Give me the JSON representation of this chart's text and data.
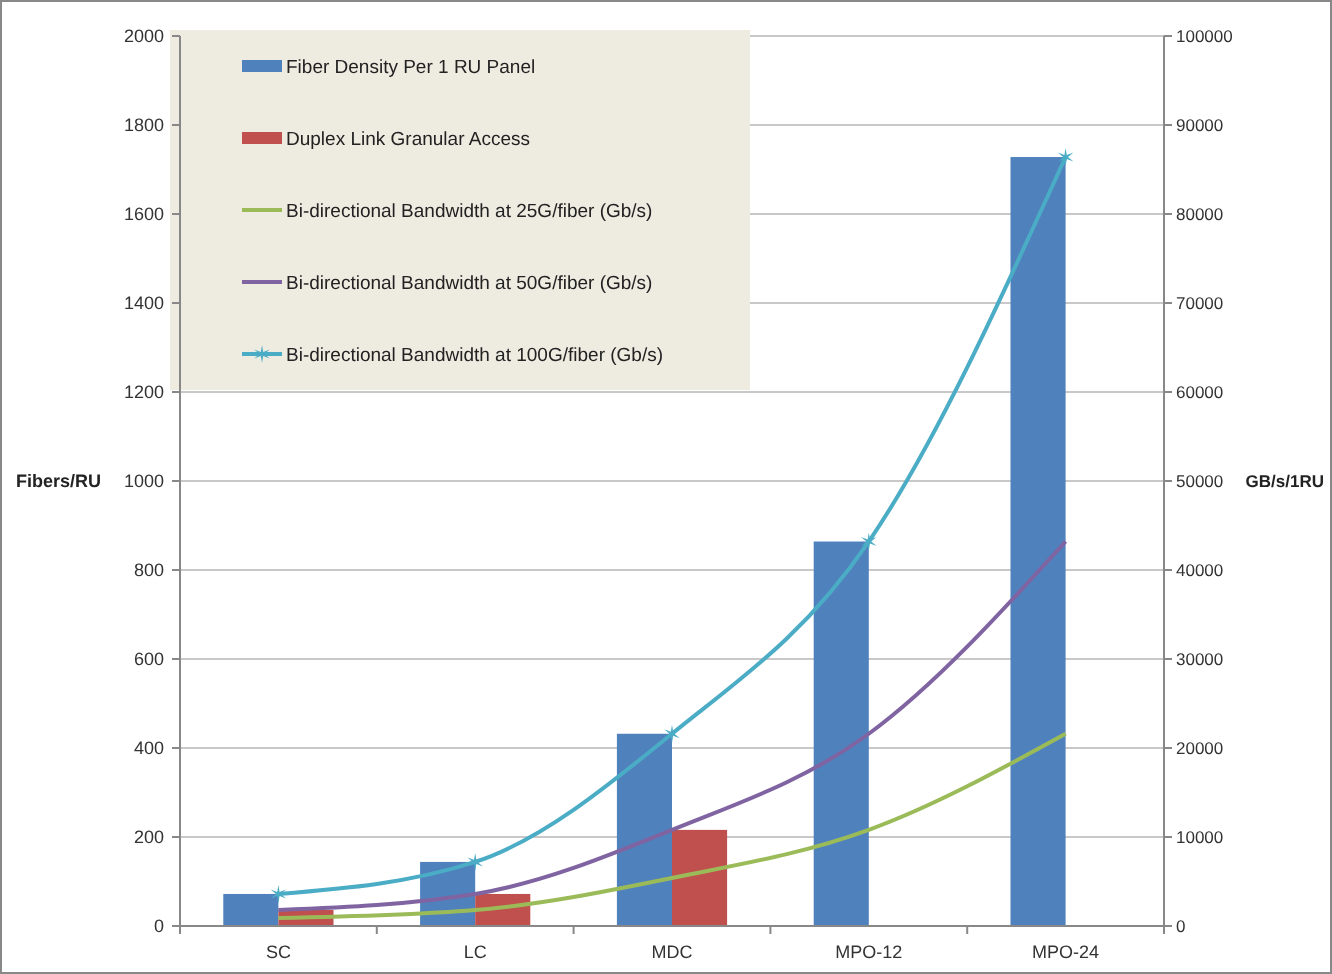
{
  "chart_data": {
    "type": "bar",
    "categories": [
      "SC",
      "LC",
      "MDC",
      "MPO-12",
      "MPO-24"
    ],
    "ylabel": "Fibers/RU",
    "y2label": "GB/s/1RU",
    "ylim": [
      0,
      2000
    ],
    "yticks": [
      0,
      200,
      400,
      600,
      800,
      1000,
      1200,
      1400,
      1600,
      1800,
      2000
    ],
    "y2lim": [
      0,
      100000
    ],
    "y2ticks": [
      0,
      10000,
      20000,
      30000,
      40000,
      50000,
      60000,
      70000,
      80000,
      90000,
      100000
    ],
    "grid": "y",
    "legend": "top left",
    "series": [
      {
        "name": "Fiber Density Per 1 RU Panel",
        "color": "#4f81bd",
        "values": [
          72,
          144,
          432,
          864,
          1728
        ]
      },
      {
        "name": "Duplex Link Granular Access",
        "color": "#c0504d",
        "values": [
          36,
          72,
          216,
          null,
          null
        ]
      },
      {
        "name": "Bi-directional Bandwidth at 25G/fiber (Gb/s)",
        "type": "line",
        "axis": "y2",
        "color": "#9bbb59",
        "marker": "none",
        "values": [
          900,
          1800,
          5400,
          10800,
          21600
        ]
      },
      {
        "name": "Bi-directional Bandwidth at 50G/fiber (Gb/s)",
        "type": "line",
        "axis": "y2",
        "color": "#8064a2",
        "marker": "none",
        "values": [
          1800,
          3600,
          10800,
          21600,
          43200
        ]
      },
      {
        "name": "Bi-directional Bandwidth at 100G/fiber (Gb/s)",
        "type": "line",
        "axis": "y2",
        "color": "#4bacc6",
        "marker": "cross",
        "values": [
          3600,
          7200,
          21600,
          43200,
          86400
        ]
      }
    ]
  }
}
